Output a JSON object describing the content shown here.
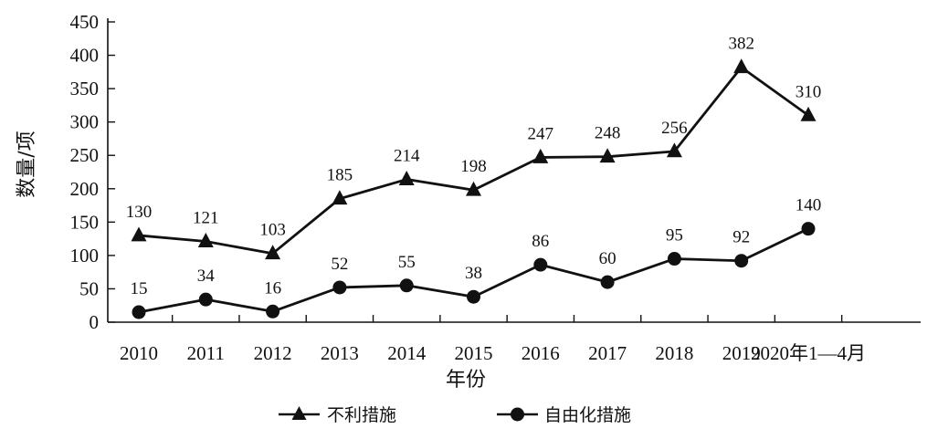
{
  "chart_data": {
    "type": "line",
    "title": "",
    "xlabel": "年份",
    "ylabel": "数量/项",
    "ylim": [
      0,
      450
    ],
    "yticks": [
      0,
      50,
      100,
      150,
      200,
      250,
      300,
      350,
      400,
      450
    ],
    "categories": [
      "2010",
      "2011",
      "2012",
      "2013",
      "2014",
      "2015",
      "2016",
      "2017",
      "2018",
      "2019",
      "2020年1—4月"
    ],
    "grid": false,
    "legend_position": "bottom",
    "series": [
      {
        "name": "不利措施",
        "marker": "triangle",
        "color": "#111111",
        "values": [
          130,
          121,
          103,
          185,
          214,
          198,
          247,
          248,
          256,
          382,
          310
        ]
      },
      {
        "name": "自由化措施",
        "marker": "circle",
        "color": "#111111",
        "values": [
          15,
          34,
          16,
          52,
          55,
          38,
          86,
          60,
          95,
          92,
          140
        ]
      }
    ]
  }
}
